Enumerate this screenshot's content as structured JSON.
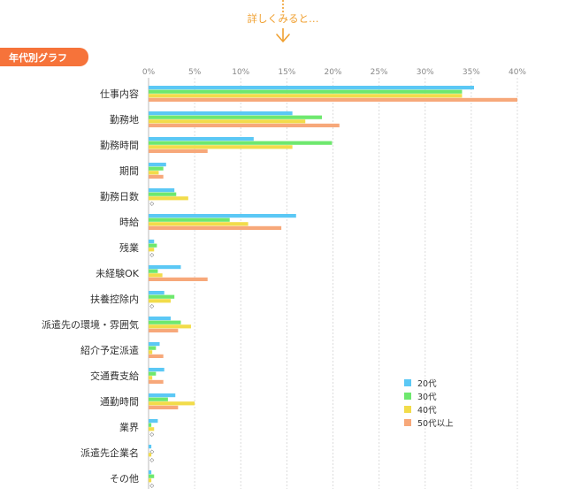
{
  "header": {
    "intro_text": "詳しくみると…",
    "badge_label": "年代別グラフ"
  },
  "chart_data": {
    "type": "bar",
    "orientation": "horizontal",
    "title": "",
    "xlabel": "",
    "ylabel": "",
    "xlim": [
      0,
      40
    ],
    "tick_values": [
      0,
      5,
      10,
      15,
      20,
      25,
      30,
      35,
      40
    ],
    "tick_labels": [
      "0%",
      "5%",
      "10%",
      "15%",
      "20%",
      "25%",
      "30%",
      "35%",
      "40%"
    ],
    "grid": true,
    "legend_position": "right-bottom",
    "zero_marker": "◇",
    "categories": [
      "仕事内容",
      "勤務地",
      "勤務時間",
      "期間",
      "勤務日数",
      "時給",
      "残業",
      "未経験OK",
      "扶養控除内",
      "派遣先の環境・雰囲気",
      "紹介予定派遣",
      "交通費支給",
      "通勤時間",
      "業界",
      "派遣先企業名",
      "その他"
    ],
    "series": [
      {
        "name": "20代",
        "color": "#5bc8f5",
        "values": [
          35.3,
          15.6,
          11.4,
          1.9,
          2.8,
          16.0,
          0.6,
          3.5,
          1.7,
          2.4,
          1.2,
          1.7,
          2.9,
          1.0,
          0.3,
          0.3
        ]
      },
      {
        "name": "30代",
        "color": "#6ee86e",
        "values": [
          34.0,
          18.8,
          19.9,
          1.6,
          3.0,
          8.8,
          0.9,
          1.0,
          2.8,
          3.5,
          0.8,
          0.8,
          2.1,
          0.3,
          0.0,
          0.6
        ]
      },
      {
        "name": "40代",
        "color": "#f2dc4a",
        "values": [
          34.0,
          17.0,
          15.6,
          1.1,
          4.3,
          10.8,
          0.6,
          1.5,
          2.4,
          4.6,
          0.4,
          0.4,
          5.0,
          0.6,
          0.3,
          0.3
        ]
      },
      {
        "name": "50代以上",
        "color": "#f7a87a",
        "values": [
          40.0,
          20.7,
          6.4,
          1.6,
          0.0,
          14.4,
          0.0,
          6.4,
          0.0,
          3.2,
          1.6,
          1.6,
          3.2,
          0.0,
          0.0,
          0.0
        ]
      }
    ]
  }
}
